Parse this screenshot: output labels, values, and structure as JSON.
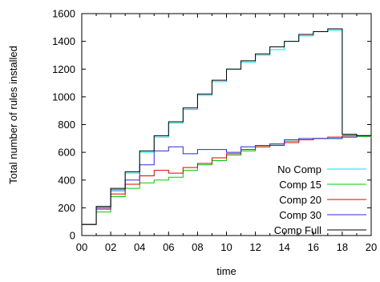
{
  "chart_data": {
    "type": "line",
    "title": "",
    "xlabel": "time",
    "ylabel": "Total number of rules installed",
    "xlim": [
      0,
      20
    ],
    "ylim": [
      0,
      1600
    ],
    "x_ticks": [
      0,
      2,
      4,
      6,
      8,
      10,
      12,
      14,
      16,
      18,
      20
    ],
    "x_tick_labels": [
      "00",
      "02",
      "04",
      "06",
      "08",
      "10",
      "12",
      "14",
      "16",
      "18",
      "20"
    ],
    "y_ticks": [
      0,
      200,
      400,
      600,
      800,
      1000,
      1200,
      1400,
      1600
    ],
    "y_tick_labels": [
      "0",
      "200",
      "400",
      "600",
      "800",
      "1000",
      "1200",
      "1400",
      "1600"
    ],
    "grid": false,
    "legend_position": "bottom-right",
    "step_style": "post",
    "series": [
      {
        "name": "No Comp",
        "color": "#00e5e5",
        "x": [
          0,
          1,
          2,
          3,
          4,
          5,
          6,
          7,
          8,
          9,
          10,
          11,
          12,
          13,
          14,
          15,
          16,
          17,
          18,
          19,
          20
        ],
        "y": [
          80,
          200,
          320,
          450,
          600,
          710,
          810,
          910,
          1010,
          1110,
          1200,
          1250,
          1300,
          1340,
          1400,
          1440,
          1470,
          1480,
          730,
          720,
          725
        ]
      },
      {
        "name": "Comp 15",
        "color": "#00cc00",
        "x": [
          0,
          1,
          2,
          3,
          4,
          5,
          6,
          7,
          8,
          9,
          10,
          11,
          12,
          13,
          14,
          15,
          16,
          17,
          18,
          19,
          20
        ],
        "y": [
          80,
          170,
          280,
          340,
          380,
          400,
          420,
          470,
          510,
          540,
          580,
          610,
          640,
          660,
          680,
          690,
          700,
          700,
          710,
          715,
          720
        ]
      },
      {
        "name": "Comp 20",
        "color": "#dd0000",
        "x": [
          0,
          1,
          2,
          3,
          4,
          5,
          6,
          7,
          8,
          9,
          10,
          11,
          12,
          13,
          14,
          15,
          16,
          17,
          18,
          19,
          20
        ],
        "y": [
          80,
          190,
          300,
          370,
          430,
          470,
          450,
          490,
          520,
          560,
          590,
          620,
          640,
          650,
          670,
          690,
          700,
          710,
          720,
          720,
          725
        ]
      },
      {
        "name": "Comp 30",
        "color": "#2a2ad8",
        "x": [
          0,
          1,
          2,
          3,
          4,
          5,
          6,
          7,
          8,
          9,
          10,
          11,
          12,
          13,
          14,
          15,
          16,
          17,
          18,
          19,
          20
        ],
        "y": [
          80,
          200,
          330,
          400,
          510,
          610,
          640,
          590,
          620,
          620,
          600,
          640,
          650,
          660,
          690,
          700,
          700,
          700,
          710,
          720,
          725
        ]
      },
      {
        "name": "Comp Full",
        "color": "#000000",
        "x": [
          0,
          1,
          2,
          3,
          4,
          5,
          6,
          7,
          8,
          9,
          10,
          11,
          12,
          13,
          14,
          15,
          16,
          17,
          18,
          19,
          20
        ],
        "y": [
          80,
          210,
          340,
          460,
          610,
          720,
          820,
          920,
          1020,
          1120,
          1200,
          1260,
          1310,
          1360,
          1400,
          1450,
          1470,
          1490,
          730,
          720,
          725
        ]
      }
    ]
  }
}
